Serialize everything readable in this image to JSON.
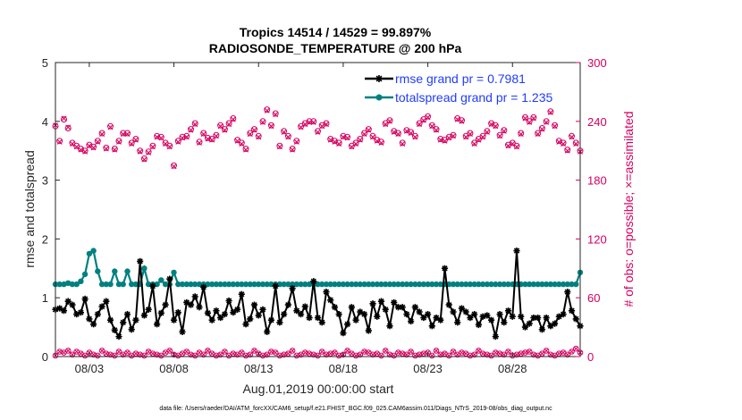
{
  "chart_data": {
    "type": "line",
    "title_line1": "Tropics 14514 / 14529 = 99.897%",
    "title_line2": "RADIOSONDE_TEMPERATURE @ 200 hPa",
    "xlabel": "Aug.01,2019 00:00:00 start",
    "ylabel_left": "rmse and totalspread",
    "ylabel_right": "# of obs: o=possible; ×=assimilated",
    "footnote": "data file: /Users/raeder/DAI/ATM_forcXX/CAM6_setup/f.e21.FHIST_BGC.f09_025.CAM6assim.011/Diags_NTrS_2019-08/obs_diag_output.nc",
    "x_ticks": [
      {
        "x": 3,
        "label": "08/03"
      },
      {
        "x": 8,
        "label": "08/08"
      },
      {
        "x": 13,
        "label": "08/13"
      },
      {
        "x": 18,
        "label": "08/18"
      },
      {
        "x": 23,
        "label": "08/23"
      },
      {
        "x": 28,
        "label": "08/28"
      }
    ],
    "xlim": [
      1.0,
      32.0
    ],
    "ylim_left": [
      0,
      5
    ],
    "ylim_right": [
      0,
      300
    ],
    "y_ticks_left": [
      "0",
      "1",
      "2",
      "3",
      "4",
      "5"
    ],
    "y_ticks_right": [
      "0",
      "60",
      "120",
      "180",
      "240",
      "300"
    ],
    "legend": {
      "position": "top-right",
      "entries": [
        "rmse grand pr = 0.7981",
        "totalspread grand pr = 1.235"
      ]
    },
    "colors": {
      "rmse": "#000000",
      "spread": "#008080",
      "obs": "#d6005f"
    },
    "x": [
      1.0,
      1.25,
      1.5,
      1.75,
      2.0,
      2.25,
      2.5,
      2.75,
      3.0,
      3.25,
      3.5,
      3.75,
      4.0,
      4.25,
      4.5,
      4.75,
      5.0,
      5.25,
      5.5,
      5.75,
      6.0,
      6.25,
      6.5,
      6.75,
      7.0,
      7.25,
      7.5,
      7.75,
      8.0,
      8.25,
      8.5,
      8.75,
      9.0,
      9.25,
      9.5,
      9.75,
      10.0,
      10.25,
      10.5,
      10.75,
      11.0,
      11.25,
      11.5,
      11.75,
      12.0,
      12.25,
      12.5,
      12.75,
      13.0,
      13.25,
      13.5,
      13.75,
      14.0,
      14.25,
      14.5,
      14.75,
      15.0,
      15.25,
      15.5,
      15.75,
      16.0,
      16.25,
      16.5,
      16.75,
      17.0,
      17.25,
      17.5,
      17.75,
      18.0,
      18.25,
      18.5,
      18.75,
      19.0,
      19.25,
      19.5,
      19.75,
      20.0,
      20.25,
      20.5,
      20.75,
      21.0,
      21.25,
      21.5,
      21.75,
      22.0,
      22.25,
      22.5,
      22.75,
      23.0,
      23.25,
      23.5,
      23.75,
      24.0,
      24.25,
      24.5,
      24.75,
      25.0,
      25.25,
      25.5,
      25.75,
      26.0,
      26.25,
      26.5,
      26.75,
      27.0,
      27.25,
      27.5,
      27.75,
      28.0,
      28.25,
      28.5,
      28.75,
      29.0,
      29.25,
      29.5,
      29.75,
      30.0,
      30.25,
      30.5,
      30.75,
      31.0,
      31.25,
      31.5,
      31.75,
      32.0
    ],
    "series": [
      {
        "name": "rmse",
        "marker": "asterisk",
        "values": [
          0.8,
          0.82,
          0.78,
          0.94,
          0.88,
          0.72,
          0.75,
          0.98,
          0.64,
          0.55,
          0.72,
          0.85,
          0.94,
          0.62,
          0.45,
          0.34,
          0.58,
          0.72,
          0.46,
          0.62,
          1.62,
          0.7,
          0.8,
          1.2,
          0.55,
          0.74,
          0.88,
          1.32,
          0.62,
          0.75,
          0.42,
          0.92,
          0.88,
          1.02,
          0.84,
          1.18,
          0.74,
          0.62,
          0.78,
          0.66,
          0.72,
          0.95,
          0.75,
          0.8,
          1.06,
          0.55,
          0.64,
          0.88,
          0.7,
          0.8,
          0.42,
          0.62,
          1.2,
          0.58,
          0.72,
          0.88,
          1.16,
          0.78,
          0.72,
          0.85,
          0.66,
          1.28,
          0.66,
          0.58,
          1.1,
          0.96,
          0.84,
          0.72,
          0.4,
          0.55,
          0.84,
          0.62,
          0.76,
          0.72,
          0.44,
          0.9,
          0.68,
          0.94,
          0.8,
          0.52,
          0.92,
          0.84,
          0.84,
          0.72,
          0.6,
          0.84,
          0.76,
          0.66,
          0.72,
          0.52,
          0.66,
          0.62,
          1.5,
          0.88,
          0.76,
          0.58,
          0.82,
          0.76,
          0.66,
          0.72,
          0.54,
          0.68,
          0.7,
          0.62,
          0.34,
          0.72,
          0.58,
          0.78,
          0.68,
          1.8,
          0.68,
          0.5,
          0.56,
          0.66,
          0.66,
          0.46,
          0.66,
          0.52,
          0.56,
          0.68,
          0.72,
          1.1,
          0.78,
          0.64,
          0.52
        ]
      },
      {
        "name": "totalspread",
        "marker": "dot",
        "values": [
          1.23,
          1.23,
          1.23,
          1.25,
          1.23,
          1.23,
          1.28,
          1.4,
          1.75,
          1.8,
          1.45,
          1.23,
          1.23,
          1.23,
          1.45,
          1.23,
          1.23,
          1.45,
          1.23,
          1.23,
          1.23,
          1.5,
          1.23,
          1.23,
          1.23,
          1.3,
          1.23,
          1.23,
          1.43,
          1.23,
          1.23,
          1.23,
          1.23,
          1.23,
          1.23,
          1.23,
          1.23,
          1.23,
          1.23,
          1.23,
          1.23,
          1.23,
          1.23,
          1.23,
          1.23,
          1.23,
          1.23,
          1.23,
          1.23,
          1.23,
          1.23,
          1.23,
          1.23,
          1.23,
          1.23,
          1.23,
          1.23,
          1.23,
          1.23,
          1.23,
          1.23,
          1.23,
          1.23,
          1.23,
          1.23,
          1.23,
          1.23,
          1.23,
          1.23,
          1.23,
          1.23,
          1.23,
          1.23,
          1.23,
          1.23,
          1.23,
          1.23,
          1.23,
          1.23,
          1.23,
          1.23,
          1.23,
          1.23,
          1.23,
          1.23,
          1.23,
          1.23,
          1.23,
          1.23,
          1.23,
          1.23,
          1.23,
          1.23,
          1.23,
          1.23,
          1.23,
          1.23,
          1.23,
          1.23,
          1.23,
          1.23,
          1.23,
          1.23,
          1.23,
          1.23,
          1.23,
          1.23,
          1.23,
          1.23,
          1.23,
          1.23,
          1.23,
          1.23,
          1.23,
          1.23,
          1.23,
          1.23,
          1.23,
          1.23,
          1.23,
          1.23,
          1.23,
          1.23,
          1.23,
          1.43
        ]
      },
      {
        "name": "obs_possible",
        "axis": "right",
        "marker": "circle",
        "values": [
          235,
          220,
          242,
          233,
          218,
          215,
          212,
          210,
          216,
          214,
          220,
          228,
          213,
          235,
          212,
          220,
          228,
          228,
          218,
          222,
          210,
          202,
          209,
          215,
          225,
          224,
          218,
          215,
          195,
          220,
          224,
          225,
          232,
          238,
          219,
          228,
          223,
          222,
          226,
          236,
          232,
          238,
          243,
          221,
          218,
          212,
          228,
          232,
          225,
          240,
          252,
          236,
          248,
          215,
          230,
          225,
          212,
          220,
          235,
          238,
          240,
          240,
          230,
          236,
          238,
          222,
          220,
          218,
          225,
          224,
          215,
          218,
          222,
          228,
          232,
          225,
          221,
          219,
          238,
          241,
          230,
          228,
          218,
          231,
          229,
          225,
          238,
          242,
          245,
          236,
          232,
          222,
          221,
          224,
          226,
          243,
          241,
          225,
          228,
          218,
          222,
          225,
          230,
          238,
          236,
          226,
          231,
          216,
          218,
          215,
          228,
          244,
          240,
          244,
          228,
          233,
          240,
          250,
          236,
          220,
          218,
          211,
          225,
          218,
          210
        ]
      },
      {
        "name": "obs_assimilated",
        "axis": "right",
        "marker": "x",
        "values": [
          236,
          219,
          243,
          234,
          217,
          214,
          211,
          209,
          215,
          213,
          219,
          227,
          212,
          234,
          211,
          219,
          227,
          227,
          217,
          221,
          209,
          201,
          208,
          214,
          224,
          223,
          217,
          214,
          194,
          219,
          223,
          224,
          231,
          237,
          218,
          227,
          222,
          221,
          225,
          235,
          231,
          237,
          242,
          220,
          217,
          211,
          227,
          231,
          224,
          239,
          251,
          235,
          247,
          214,
          229,
          224,
          211,
          219,
          234,
          237,
          239,
          239,
          229,
          235,
          237,
          221,
          219,
          217,
          224,
          223,
          214,
          217,
          221,
          227,
          231,
          224,
          220,
          218,
          237,
          240,
          229,
          227,
          217,
          230,
          228,
          224,
          237,
          241,
          244,
          235,
          231,
          221,
          220,
          223,
          225,
          242,
          240,
          224,
          227,
          217,
          221,
          224,
          229,
          237,
          235,
          225,
          230,
          215,
          217,
          214,
          227,
          243,
          239,
          243,
          227,
          232,
          239,
          249,
          235,
          219,
          217,
          210,
          224,
          217,
          209
        ]
      },
      {
        "name": "obs_bottom",
        "axis": "right",
        "marker": "circle",
        "values": [
          1,
          5,
          4,
          6,
          2,
          5,
          3,
          1,
          4,
          2,
          1,
          6,
          3,
          2,
          1,
          5,
          2,
          4,
          1,
          3,
          2,
          1,
          5,
          3,
          2,
          1,
          4,
          6,
          2,
          1,
          3,
          5,
          2,
          1,
          4,
          2,
          6,
          3,
          1,
          2,
          5,
          1,
          3,
          2,
          4,
          1,
          2,
          6,
          3,
          1,
          2,
          5,
          4,
          1,
          2,
          3,
          6,
          1,
          2,
          4,
          3,
          2,
          1,
          5,
          2,
          3,
          4,
          1,
          2,
          6,
          3,
          1,
          2,
          5,
          4,
          2,
          3,
          1,
          6,
          2,
          1,
          4,
          3,
          2,
          5,
          1,
          2,
          3,
          4,
          1,
          6,
          2,
          3,
          1,
          5,
          2,
          4,
          3,
          1,
          2,
          6,
          3,
          2,
          1,
          4,
          3,
          2,
          5,
          1,
          2,
          3,
          4,
          5,
          2,
          1,
          3,
          6,
          2,
          1,
          3,
          4,
          2,
          5,
          8,
          4
        ]
      }
    ]
  }
}
